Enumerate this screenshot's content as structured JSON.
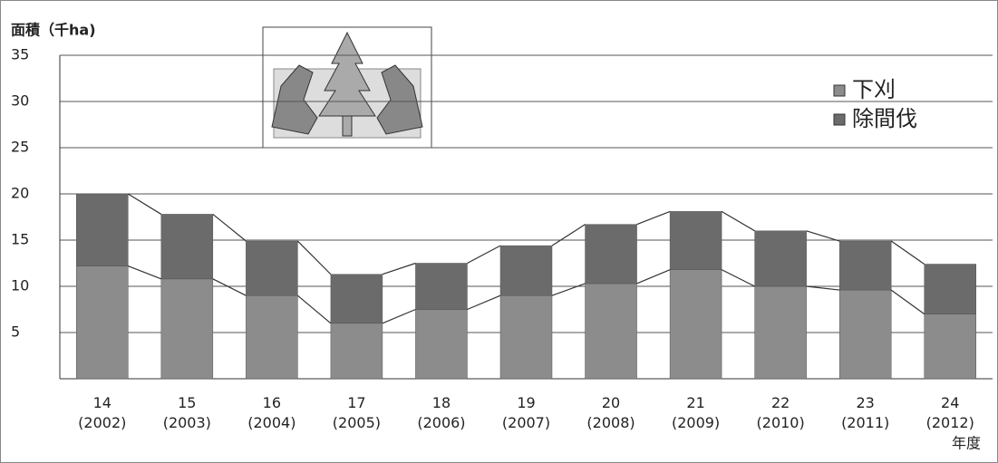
{
  "chart_data": {
    "type": "stacked_bar",
    "y_label": "面積（千ha)",
    "x_label": "年度",
    "categories": [
      "14\n(2002)",
      "15\n(2003)",
      "16\n(2004)",
      "17\n(2005)",
      "18\n(2006)",
      "19\n(2007)",
      "20\n(2008)",
      "21\n(2009)",
      "22\n(2010)",
      "23\n(2011)",
      "24\n(2012)"
    ],
    "series": [
      {
        "name": "下刈",
        "color": "#8c8c8c",
        "values": [
          12.2,
          10.8,
          9,
          6,
          7.5,
          9,
          10.3,
          11.8,
          10,
          9.6,
          7
        ]
      },
      {
        "name": "除間伐",
        "color": "#6b6b6b",
        "values": [
          7.8,
          7.0,
          5.9,
          5.3,
          5.0,
          5.4,
          6.4,
          6.3,
          6.0,
          5.3,
          5.4
        ]
      }
    ],
    "ylim": [
      0,
      35
    ],
    "yticks": [
      5,
      10,
      15,
      20,
      25,
      30,
      35
    ],
    "grid": true,
    "legend": "upper right"
  }
}
